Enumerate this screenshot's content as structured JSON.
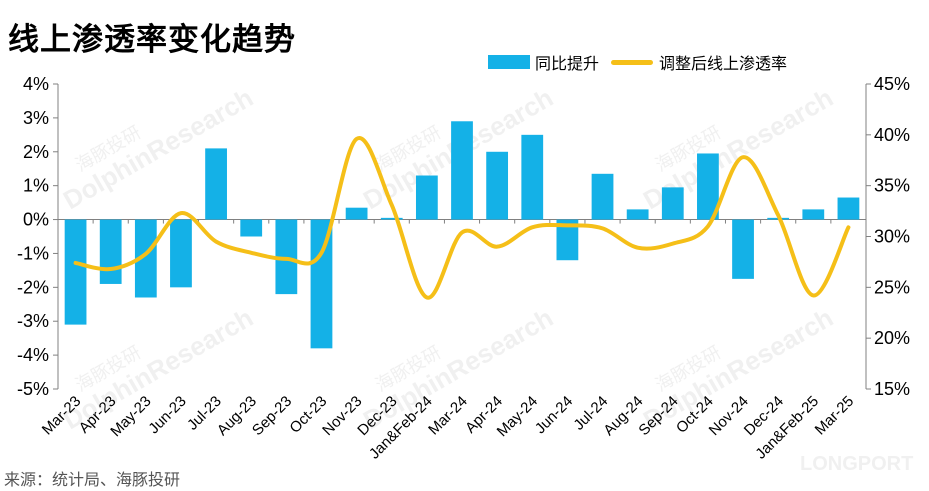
{
  "title": "线上渗透率变化趋势",
  "source": "来源：统计局、海豚投研",
  "watermark": {
    "text": "DolphinResearch",
    "cn": "海豚投研",
    "corner": "LONGPORT"
  },
  "colors": {
    "bar": "#14b1e7",
    "line": "#f5bf18",
    "axis": "#808080"
  },
  "chart_data": {
    "type": "bar",
    "categories": [
      "Mar-23",
      "Apr-23",
      "May-23",
      "Jun-23",
      "Jul-23",
      "Aug-23",
      "Sep-23",
      "Oct-23",
      "Nov-23",
      "Dec-23",
      "Jan&Feb-24",
      "Mar-24",
      "Apr-24",
      "May-24",
      "Jun-24",
      "Jul-24",
      "Aug-24",
      "Sep-24",
      "Oct-24",
      "Nov-24",
      "Dec-24",
      "Jan&Feb-25",
      "Mar-25"
    ],
    "series": [
      {
        "name": "同比提升",
        "type": "bar",
        "axis": "left",
        "values": [
          -3.1,
          -1.9,
          -2.3,
          -2.0,
          2.1,
          -0.5,
          -2.2,
          -3.8,
          0.35,
          0.05,
          1.3,
          2.9,
          2.0,
          2.5,
          -1.2,
          1.35,
          0.3,
          0.95,
          1.95,
          -1.75,
          0.05,
          0.3,
          0.65
        ]
      },
      {
        "name": "调整后线上渗透率",
        "type": "line",
        "axis": "right",
        "values": [
          27.4,
          26.8,
          28.3,
          32.3,
          29.5,
          28.4,
          27.8,
          28.4,
          39.6,
          33.1,
          24.0,
          30.4,
          29.0,
          30.9,
          31.1,
          30.8,
          28.9,
          29.3,
          31.0,
          37.8,
          32.1,
          24.2,
          30.9
        ]
      }
    ],
    "left_axis": {
      "min": -5,
      "max": 4,
      "ticks": [
        "4%",
        "3%",
        "2%",
        "1%",
        "0%",
        "-1%",
        "-2%",
        "-3%",
        "-4%",
        "-5%"
      ]
    },
    "right_axis": {
      "min": 15,
      "max": 45,
      "ticks": [
        "45%",
        "40%",
        "35%",
        "30%",
        "25%",
        "20%",
        "15%"
      ]
    },
    "legend": "top-right",
    "grid": false
  }
}
